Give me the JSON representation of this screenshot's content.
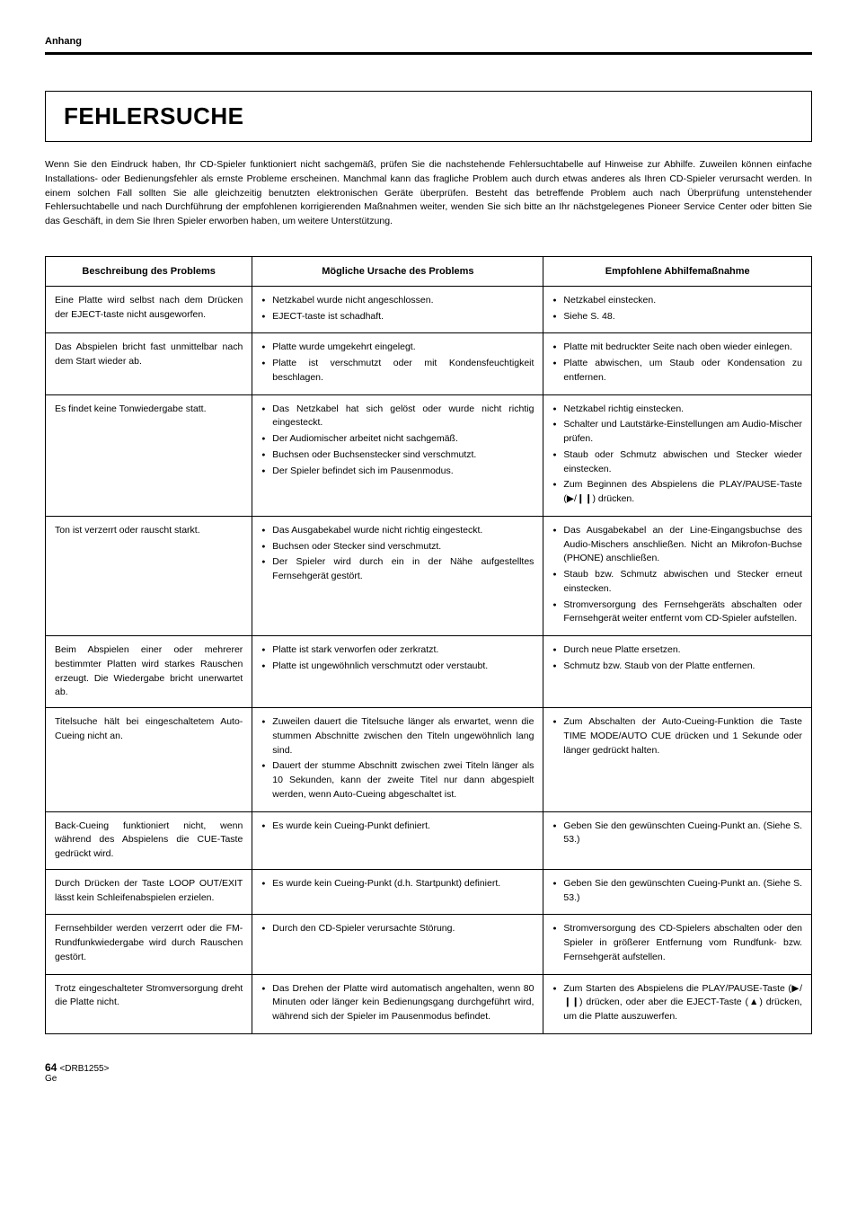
{
  "header": {
    "section": "Anhang"
  },
  "title": "FEHLERSUCHE",
  "intro": "Wenn Sie den Eindruck haben, Ihr CD-Spieler funktioniert nicht sachgemäß, prüfen Sie die nachstehende Fehlersuchtabelle auf Hinweise zur Abhilfe. Zuweilen können einfache Installations- oder Bedienungsfehler als ernste Probleme erscheinen. Manchmal kann das fragliche Problem auch durch etwas anderes als Ihren CD-Spieler verursacht werden. In einem solchen Fall sollten Sie alle gleichzeitig benutzten elektronischen Geräte überprüfen. Besteht das betreffende Problem auch nach Überprüfung untenstehender Fehlersuchtabelle und nach Durchführung der empfohlenen korrigierenden Maßnahmen weiter, wenden Sie sich bitte an Ihr nächstgelegenes Pioneer Service Center oder bitten Sie das Geschäft, in dem Sie Ihren Spieler erworben haben, um weitere Unterstützung.",
  "table": {
    "headers": {
      "col1": "Beschreibung des Problems",
      "col2": "Mögliche Ursache des Problems",
      "col3": "Empfohlene Abhilfemaßnahme"
    },
    "rows": [
      {
        "problem": "Eine Platte wird selbst nach dem Drücken der EJECT-taste nicht ausgeworfen.",
        "causes": [
          "Netzkabel wurde nicht angeschlossen.",
          "EJECT-taste ist schadhaft."
        ],
        "solutions": [
          "Netzkabel einstecken.",
          "Siehe S. 48."
        ]
      },
      {
        "problem": "Das Abspielen bricht fast unmittelbar nach dem Start wieder ab.",
        "causes": [
          "Platte wurde umgekehrt eingelegt.",
          "Platte ist verschmutzt oder mit Kondensfeuchtigkeit beschlagen."
        ],
        "solutions": [
          "Platte mit bedruckter Seite nach oben wieder einlegen.",
          "Platte abwischen, um Staub oder Kondensation zu entfernen."
        ]
      },
      {
        "problem": "Es findet keine Tonwiedergabe statt.",
        "causes": [
          "Das Netzkabel hat sich gelöst oder wurde nicht richtig eingesteckt.",
          "Der Audiomischer arbeitet nicht sachgemäß.",
          "Buchsen oder Buchsenstecker sind verschmutzt.",
          "Der Spieler befindet sich im Pausenmodus."
        ],
        "solutions": [
          "Netzkabel richtig einstecken.",
          "Schalter und Lautstärke-Einstellungen am Audio-Mischer prüfen.",
          "Staub oder Schmutz abwischen und Stecker wieder einstecken.",
          "Zum Beginnen des Abspielens die PLAY/PAUSE-Taste (▶/❙❙) drücken."
        ]
      },
      {
        "problem": "Ton ist verzerrt oder rauscht starkt.",
        "causes": [
          "Das Ausgabekabel wurde nicht richtig eingesteckt.",
          "Buchsen oder Stecker sind verschmutzt.",
          "Der Spieler wird durch ein in der Nähe aufgestelltes Fernsehgerät gestört."
        ],
        "solutions": [
          "Das Ausgabekabel an der Line-Eingangsbuchse des Audio-Mischers anschließen. Nicht an Mikrofon-Buchse (PHONE) anschließen.",
          "Staub bzw. Schmutz abwischen und Stecker erneut einstecken.",
          "Stromversorgung des Fernsehgeräts abschalten oder Fernsehgerät weiter entfernt vom CD-Spieler aufstellen."
        ]
      },
      {
        "problem": "Beim Abspielen einer oder mehrerer bestimmter Platten wird starkes Rauschen erzeugt. Die Wiedergabe bricht unerwartet ab.",
        "causes": [
          "Platte ist stark verworfen oder zerkratzt.",
          "Platte ist ungewöhnlich verschmutzt oder verstaubt."
        ],
        "solutions": [
          "Durch neue Platte ersetzen.",
          "Schmutz bzw. Staub von der Platte entfernen."
        ]
      },
      {
        "problem": "Titelsuche hält bei eingeschaltetem Auto-Cueing nicht an.",
        "causes": [
          "Zuweilen dauert die Titelsuche länger als erwartet, wenn die stummen Abschnitte zwischen den Titeln ungewöhnlich lang sind.",
          "Dauert der stumme Abschnitt zwischen zwei Titeln länger als 10 Sekunden, kann der zweite Titel nur dann abgespielt werden, wenn Auto-Cueing abgeschaltet ist."
        ],
        "solutions": [
          "Zum Abschalten der Auto-Cueing-Funktion die Taste TIME MODE/AUTO CUE drücken und 1 Sekunde oder länger gedrückt halten."
        ]
      },
      {
        "problem": "Back-Cueing funktioniert nicht, wenn während des Abspielens die CUE-Taste gedrückt wird.",
        "causes": [
          "Es wurde kein Cueing-Punkt definiert."
        ],
        "solutions": [
          "Geben Sie den gewünschten Cueing-Punkt an. (Siehe S. 53.)"
        ]
      },
      {
        "problem": "Durch Drücken der Taste LOOP OUT/EXIT lässt kein Schleifenabspielen erzielen.",
        "causes": [
          "Es wurde kein Cueing-Punkt (d.h. Startpunkt) definiert."
        ],
        "solutions": [
          "Geben Sie den gewünschten Cueing-Punkt an. (Siehe S. 53.)"
        ]
      },
      {
        "problem": "Fernsehbilder werden verzerrt oder die FM-Rundfunkwiedergabe wird durch Rauschen gestört.",
        "causes": [
          "Durch den CD-Spieler verursachte Störung."
        ],
        "solutions": [
          "Stromversorgung des CD-Spielers abschalten oder den Spieler in größerer Entfernung vom Rundfunk- bzw. Fernsehgerät aufstellen."
        ]
      },
      {
        "problem": "Trotz eingeschalteter Stromversorgung dreht die Platte nicht.",
        "causes": [
          "Das Drehen der Platte wird automatisch angehalten, wenn 80 Minuten oder länger kein Bedienungsgang durchgeführt wird, während sich der Spieler im Pausenmodus befindet."
        ],
        "solutions": [
          "Zum Starten des Abspielens die PLAY/PAUSE-Taste (▶/❙❙) drücken, oder aber die EJECT-Taste (▲) drücken, um die Platte auszuwerfen."
        ]
      }
    ]
  },
  "footer": {
    "pageNum": "64",
    "code": "<DRB1255>",
    "lang": "Ge"
  }
}
